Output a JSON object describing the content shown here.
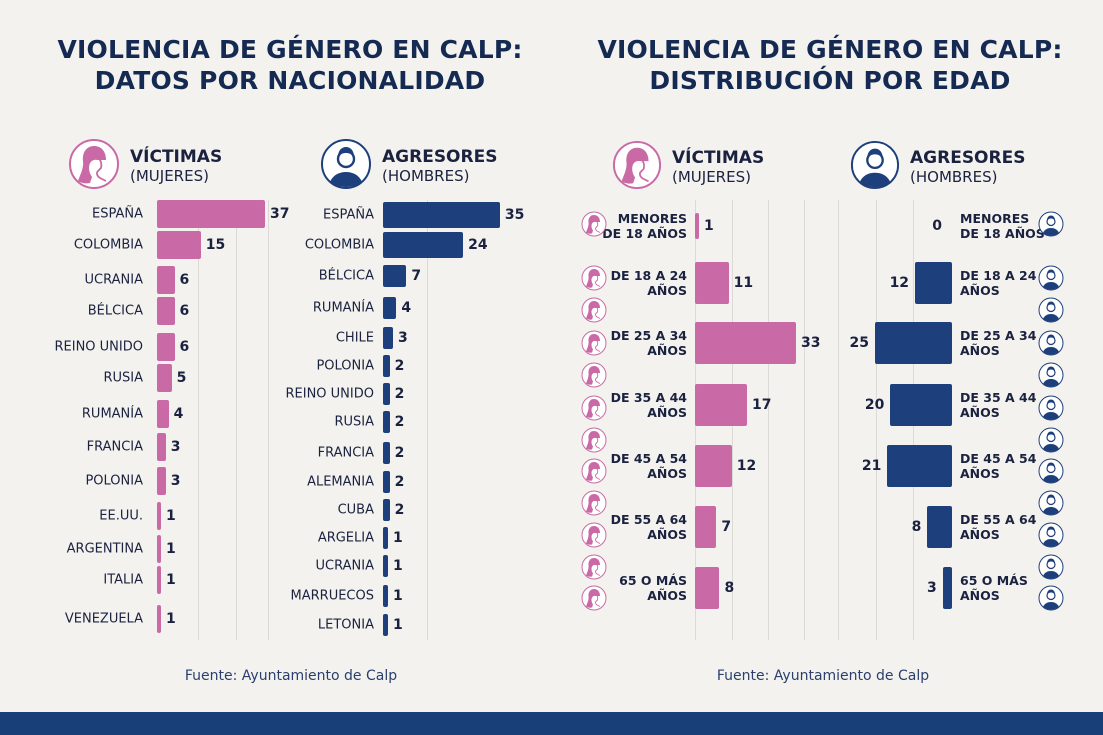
{
  "colors": {
    "victims": "#c96aa6",
    "aggressors": "#1d3f7b"
  },
  "left": {
    "title_line1": "VIOLENCIA DE GÉNERO EN CALP:",
    "title_line2": "DATOS POR NACIONALIDAD",
    "victims_header": "VÍCTIMAS",
    "victims_sub": "(MUJERES)",
    "aggressors_header": "AGRESORES",
    "aggressors_sub": "(HOMBRES)",
    "source": "Fuente: Ayuntamiento de Calp"
  },
  "right": {
    "title_line1": "VIOLENCIA DE GÉNERO EN CALP:",
    "title_line2": "DISTRIBUCIÓN POR EDAD",
    "victims_header": "VÍCTIMAS",
    "victims_sub": "(MUJERES)",
    "aggressors_header": "AGRESORES",
    "aggressors_sub": "(HOMBRES)",
    "source": "Fuente: Ayuntamiento de Calp"
  },
  "chart_data": [
    {
      "type": "bar",
      "orientation": "horizontal",
      "series": [
        {
          "name": "VÍCTIMAS (MUJERES)",
          "categories": [
            "ESPAÑA",
            "COLOMBIA",
            "UCRANIA",
            "BÉLCICA",
            "REINO UNIDO",
            "RUSIA",
            "RUMANÍA",
            "FRANCIA",
            "POLONIA",
            "EE.UU.",
            "ARGENTINA",
            "ITALIA",
            "VENEZUELA"
          ],
          "values": [
            37,
            15,
            6,
            6,
            6,
            5,
            4,
            3,
            3,
            1,
            1,
            1,
            1
          ]
        }
      ]
    },
    {
      "type": "bar",
      "orientation": "horizontal",
      "series": [
        {
          "name": "AGRESORES (HOMBRES)",
          "categories": [
            "ESPAÑA",
            "COLOMBIA",
            "BÉLCICA",
            "RUMANÍA",
            "CHILE",
            "POLONIA",
            "REINO UNIDO",
            "RUSIA",
            "FRANCIA",
            "ALEMANIA",
            "CUBA",
            "ARGELIA",
            "UCRANIA",
            "MARRUECOS",
            "LETONIA"
          ],
          "values": [
            35,
            24,
            7,
            4,
            3,
            2,
            2,
            2,
            2,
            2,
            2,
            1,
            1,
            1,
            1
          ]
        }
      ]
    },
    {
      "type": "bar",
      "orientation": "horizontal",
      "categories": [
        [
          "MENORES",
          "DE 18 AÑOS"
        ],
        [
          "DE 18 A 24",
          "AÑOS"
        ],
        [
          "DE 25 A 34",
          "AÑOS"
        ],
        [
          "DE 35 A 44",
          "AÑOS"
        ],
        [
          "DE 45 A 54",
          "AÑOS"
        ],
        [
          "DE 55 A 64",
          "AÑOS"
        ],
        [
          "65 O MÁS",
          "AÑOS"
        ]
      ],
      "series": [
        {
          "name": "VÍCTIMAS (MUJERES)",
          "values": [
            1,
            11,
            33,
            17,
            12,
            7,
            8
          ]
        },
        {
          "name": "AGRESORES (HOMBRES)",
          "values": [
            0,
            12,
            25,
            20,
            21,
            8,
            3
          ]
        }
      ]
    }
  ]
}
